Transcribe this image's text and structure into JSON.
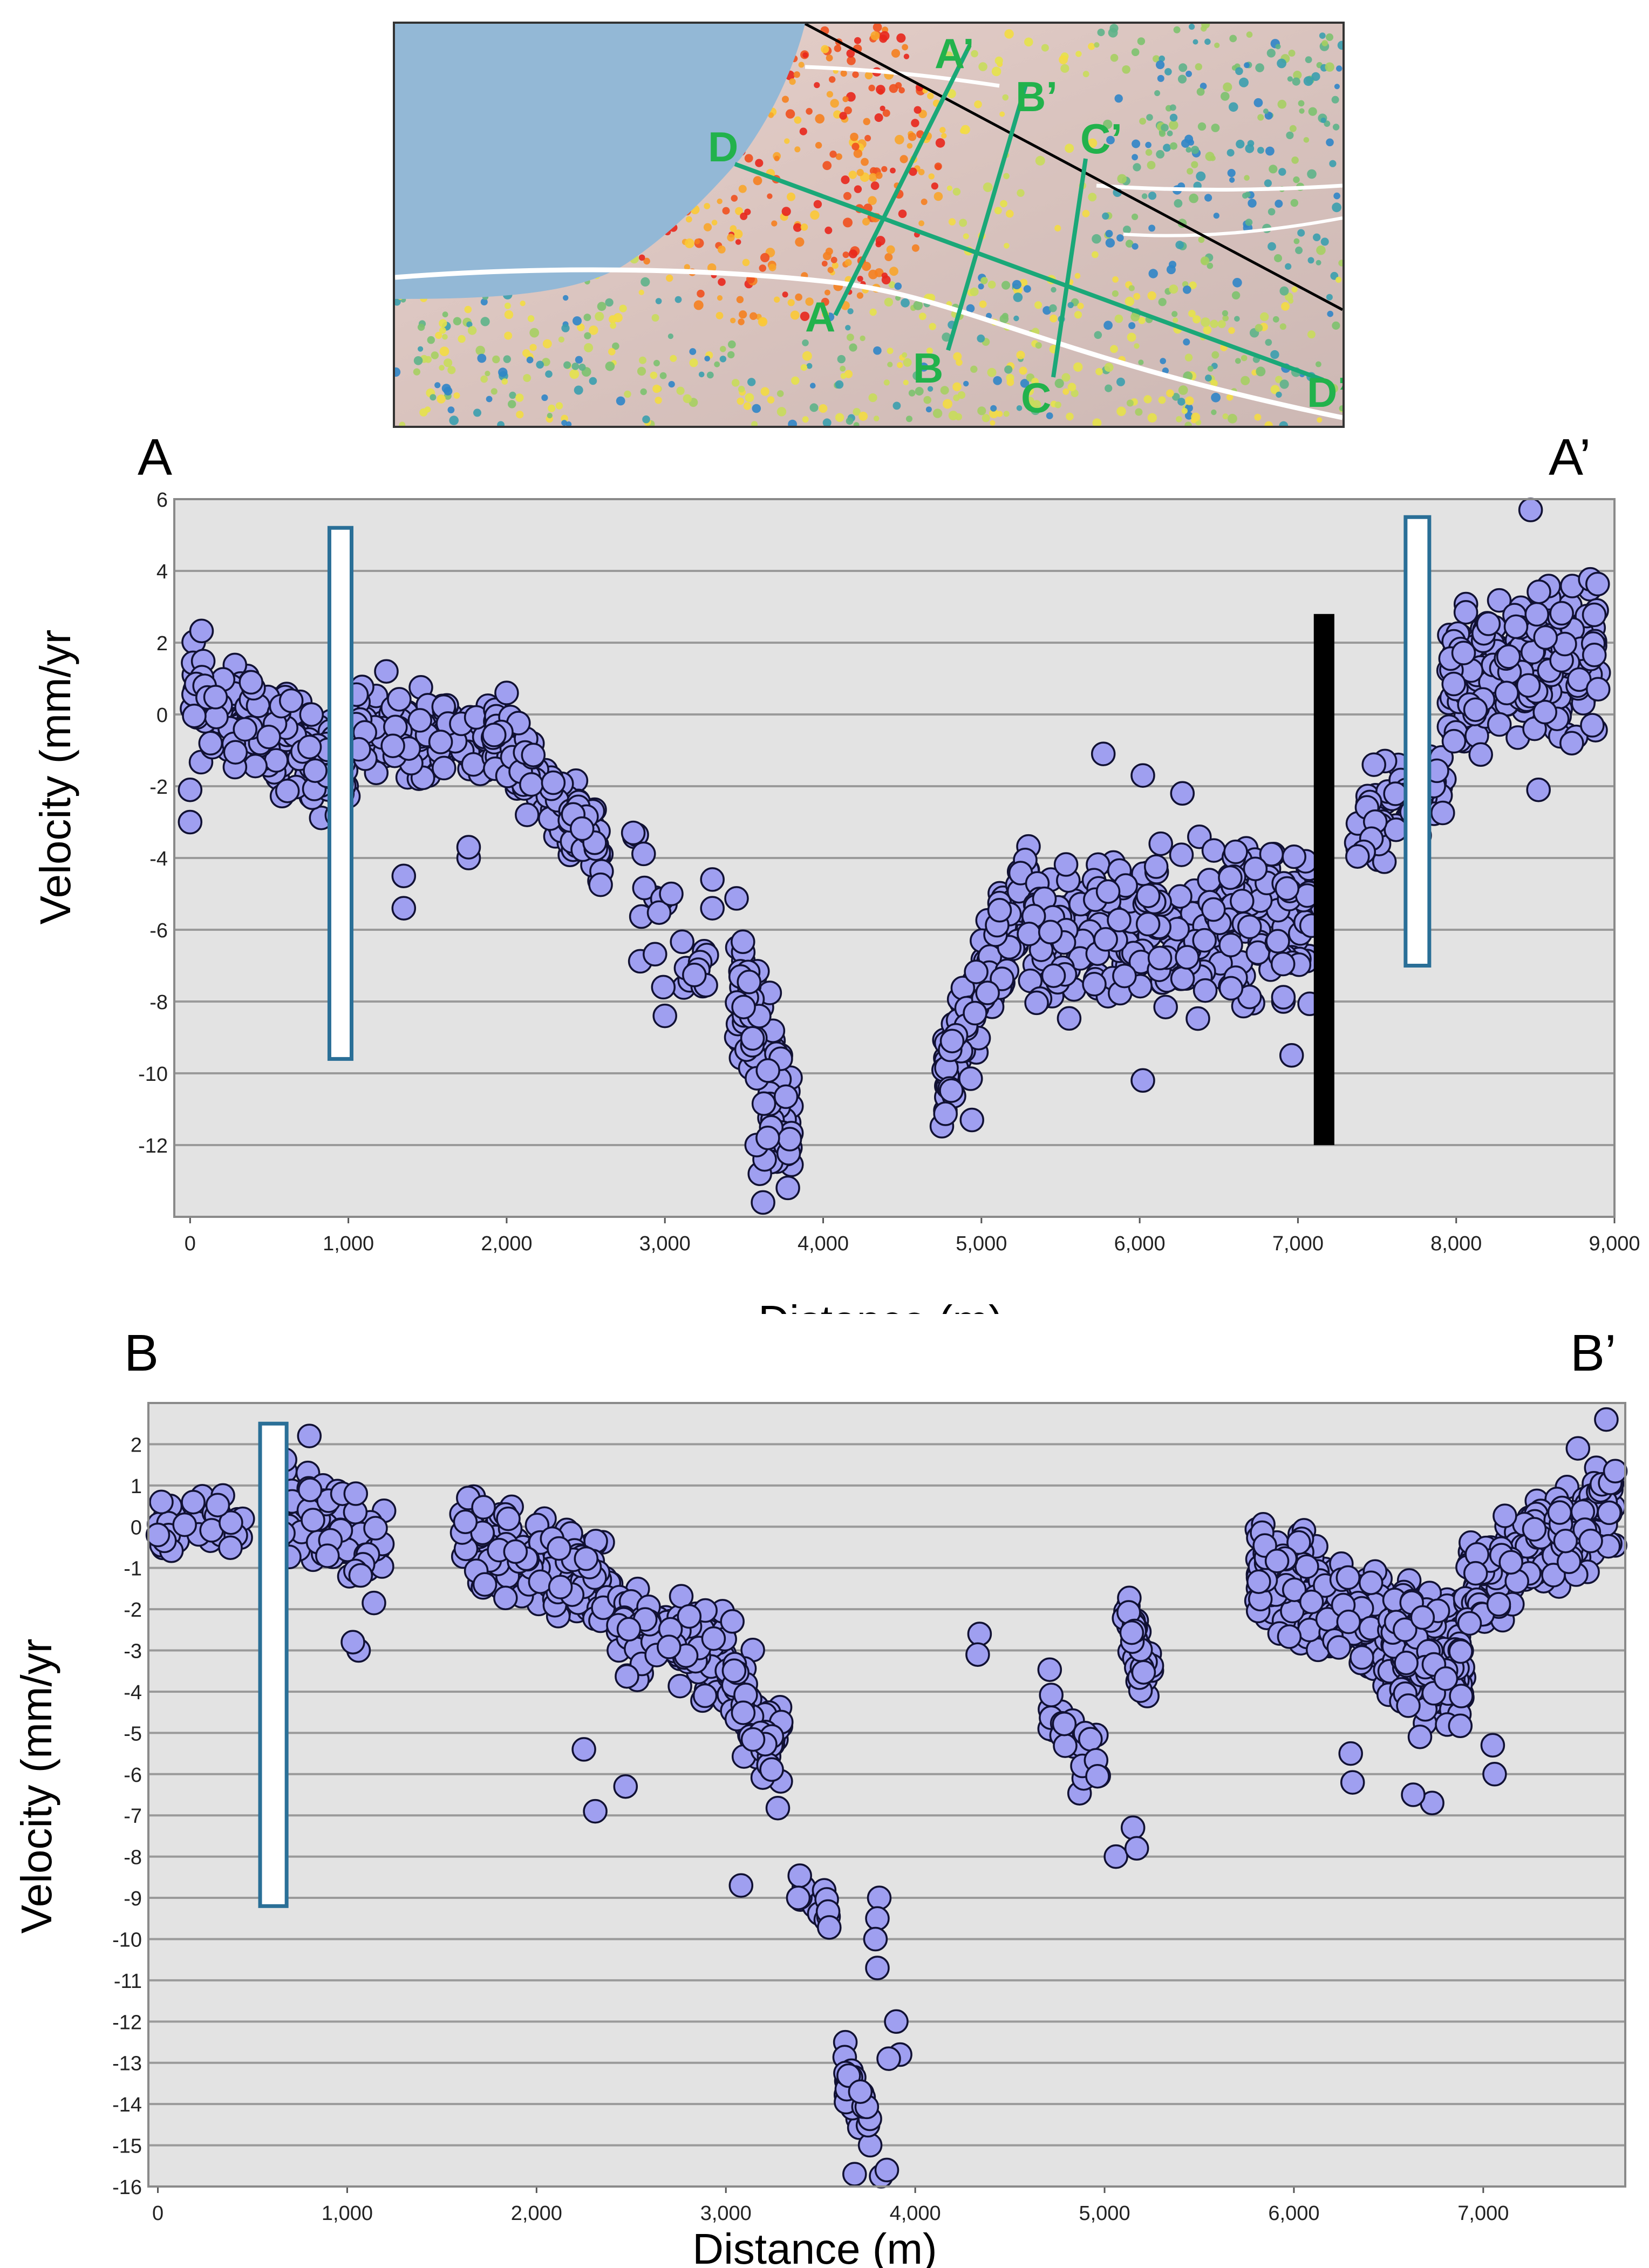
{
  "map": {
    "profile_labels": [
      "A",
      "A’",
      "B",
      "B’",
      "C",
      "C’",
      "D",
      "D’"
    ],
    "colors": {
      "water": "#93b8d6",
      "profile_line": "#1aa878",
      "label": "#22b24c",
      "fault": "#000000",
      "road": "#ffffff"
    }
  },
  "colors": {
    "point_fill": "#9f9ff0",
    "point_stroke": "#111133",
    "plot_bg": "#e3e3e3",
    "grid": "#9a9a9a",
    "box_stroke": "#2a6f97",
    "bar_fill": "#000000"
  },
  "chart_data": [
    {
      "id": "A",
      "type": "scatter",
      "title_left": "A",
      "title_right": "A’",
      "xlabel": "Distance (m)",
      "ylabel": "Velocity (mm/yr",
      "xlim": [
        -100,
        9000
      ],
      "ylim": [
        -14,
        6
      ],
      "xticks": [
        0,
        1000,
        2000,
        3000,
        4000,
        5000,
        6000,
        7000,
        8000,
        9000
      ],
      "xtick_labels": [
        "0",
        "1,000",
        "2,000",
        "3,000",
        "4,000",
        "5,000",
        "6,000",
        "7,000",
        "8,000",
        "9,000"
      ],
      "yticks": [
        -12,
        -10,
        -8,
        -6,
        -4,
        -2,
        0,
        2,
        4,
        6
      ],
      "ytick_labels": [
        "-12",
        "-10",
        "-8",
        "-6",
        "-4",
        "-2",
        "0",
        "2",
        "4",
        "6"
      ],
      "annotations": [
        {
          "kind": "open-box",
          "x0": 880,
          "x1": 1020,
          "y0": -9.6,
          "y1": 5.2
        },
        {
          "kind": "open-box",
          "x0": 7680,
          "x1": 7830,
          "y0": -7,
          "y1": 5.5
        },
        {
          "kind": "filled-bar",
          "x0": 7100,
          "x1": 7230,
          "y0": -12,
          "y1": 2.8
        }
      ],
      "clusters": [
        {
          "x": [
            0,
            1000
          ],
          "y": [
            0.6,
            -1.6
          ],
          "spread": 1.1,
          "n": 220
        },
        {
          "x": [
            1000,
            1900
          ],
          "y": [
            -0.3,
            -0.9
          ],
          "spread": 0.9,
          "n": 130
        },
        {
          "x": [
            1900,
            2600
          ],
          "y": [
            -0.5,
            -3.8
          ],
          "spread": 0.9,
          "n": 140
        },
        {
          "x": [
            2800,
            3300
          ],
          "y": [
            -4.8,
            -7.2
          ],
          "spread": 1.3,
          "n": 22
        },
        {
          "x": [
            3450,
            3800
          ],
          "y": [
            -7.5,
            -12
          ],
          "spread": 1.6,
          "n": 85
        },
        {
          "x": [
            4750,
            5300
          ],
          "y": [
            -10.5,
            -4.5
          ],
          "spread": 1.1,
          "n": 130
        },
        {
          "x": [
            5300,
            7100
          ],
          "y": [
            -6.0,
            -5.8
          ],
          "spread": 1.6,
          "n": 330
        },
        {
          "x": [
            7350,
            7950
          ],
          "y": [
            -3.4,
            -1.8
          ],
          "spread": 0.9,
          "n": 60
        },
        {
          "x": [
            7950,
            8900
          ],
          "y": [
            1.2,
            1.5
          ],
          "spread": 1.6,
          "n": 260
        }
      ],
      "points": [
        [
          3620,
          -13.6
        ],
        [
          3600,
          -12.8
        ],
        [
          3630,
          -12.4
        ],
        [
          3580,
          -12.0
        ],
        [
          3650,
          -11.8
        ],
        [
          2800,
          -3.3
        ],
        [
          1350,
          -5.4
        ],
        [
          1350,
          -4.5
        ],
        [
          1240,
          1.2
        ],
        [
          1760,
          -4.0
        ],
        [
          1760,
          -3.7
        ],
        [
          2000,
          0.6
        ],
        [
          3000,
          -8.4
        ],
        [
          3040,
          -5.0
        ],
        [
          2990,
          -7.6
        ],
        [
          3300,
          -5.4
        ],
        [
          3300,
          -4.6
        ],
        [
          5770,
          -1.1
        ],
        [
          6020,
          -1.7
        ],
        [
          6020,
          -10.2
        ],
        [
          6270,
          -2.2
        ],
        [
          6960,
          -9.5
        ],
        [
          8520,
          -2.1
        ],
        [
          8470,
          5.7
        ],
        [
          7550,
          -1.3
        ],
        [
          7480,
          -1.4
        ],
        [
          4940,
          -11.3
        ],
        [
          0,
          -3.0
        ],
        [
          0,
          -2.1
        ],
        [
          8730,
          -0.8
        ],
        [
          8860,
          -0.3
        ]
      ]
    },
    {
      "id": "B",
      "type": "scatter",
      "title_left": "B",
      "title_right": "B’",
      "xlabel": "Distance (m)",
      "ylabel": "Velocity (mm/yr",
      "xlim": [
        -50,
        7750
      ],
      "ylim": [
        -16,
        3
      ],
      "xticks": [
        0,
        1000,
        2000,
        3000,
        4000,
        5000,
        6000,
        7000
      ],
      "xtick_labels": [
        "0",
        "1,000",
        "2,000",
        "3,000",
        "4,000",
        "5,000",
        "6,000",
        "7,000"
      ],
      "yticks": [
        -16,
        -15,
        -14,
        -13,
        -12,
        -11,
        -10,
        -9,
        -8,
        -7,
        -6,
        -5,
        -4,
        -3,
        -2,
        -1,
        0,
        1,
        2
      ],
      "ytick_labels": [
        "-16",
        "-15",
        "-14",
        "-13",
        "-12",
        "-11",
        "-10",
        "-9",
        "-8",
        "-7",
        "-6",
        "-5",
        "-4",
        "-3",
        "-2",
        "-1",
        "0",
        "1",
        "2"
      ],
      "annotations": [
        {
          "kind": "open-box",
          "x0": 540,
          "x1": 680,
          "y0": -9.2,
          "y1": 2.5
        }
      ],
      "clusters": [
        {
          "x": [
            0,
            450
          ],
          "y": [
            0.0,
            0.2
          ],
          "spread": 0.6,
          "n": 45
        },
        {
          "x": [
            650,
            1200
          ],
          "y": [
            0.6,
            -0.8
          ],
          "spread": 0.9,
          "n": 110
        },
        {
          "x": [
            1600,
            2400
          ],
          "y": [
            -0.2,
            -1.6
          ],
          "spread": 0.9,
          "n": 150
        },
        {
          "x": [
            2400,
            3000
          ],
          "y": [
            -2.4,
            -3.0
          ],
          "spread": 0.9,
          "n": 110
        },
        {
          "x": [
            3000,
            3300
          ],
          "y": [
            -3.4,
            -5.8
          ],
          "spread": 1.1,
          "n": 60
        },
        {
          "x": [
            3350,
            3550
          ],
          "y": [
            -8.7,
            -9.3
          ],
          "spread": 0.4,
          "n": 14
        },
        {
          "x": [
            3620,
            3780
          ],
          "y": [
            -13.2,
            -14.8
          ],
          "spread": 0.6,
          "n": 30
        },
        {
          "x": [
            4700,
            5000
          ],
          "y": [
            -4.5,
            -6.0
          ],
          "spread": 0.7,
          "n": 35
        },
        {
          "x": [
            5100,
            5250
          ],
          "y": [
            -2.0,
            -3.8
          ],
          "spread": 0.6,
          "n": 45
        },
        {
          "x": [
            5800,
            6500
          ],
          "y": [
            -0.9,
            -2.6
          ],
          "spread": 1.0,
          "n": 200
        },
        {
          "x": [
            6500,
            6900
          ],
          "y": [
            -3.0,
            -3.2
          ],
          "spread": 1.3,
          "n": 150
        },
        {
          "x": [
            6900,
            7700
          ],
          "y": [
            -1.6,
            0.6
          ],
          "spread": 1.0,
          "n": 210
        }
      ],
      "points": [
        [
          800,
          2.2
        ],
        [
          7650,
          2.6
        ],
        [
          7500,
          1.9
        ],
        [
          2250,
          -5.4
        ],
        [
          2310,
          -6.9
        ],
        [
          2470,
          -6.3
        ],
        [
          3080,
          -8.7
        ],
        [
          3810,
          -9.0
        ],
        [
          3800,
          -10.7
        ],
        [
          3900,
          -12.0
        ],
        [
          3920,
          -12.8
        ],
        [
          3860,
          -12.9
        ],
        [
          3820,
          -15.9
        ],
        [
          3850,
          -15.6
        ],
        [
          3680,
          -15.7
        ],
        [
          3710,
          -13.7
        ],
        [
          4340,
          -2.6
        ],
        [
          4330,
          -3.1
        ],
        [
          5060,
          -8.0
        ],
        [
          5150,
          -7.3
        ],
        [
          5170,
          -7.8
        ],
        [
          6310,
          -6.2
        ],
        [
          6300,
          -5.5
        ],
        [
          6730,
          -6.7
        ],
        [
          6630,
          -6.5
        ],
        [
          7050,
          -5.3
        ],
        [
          7060,
          -6.0
        ],
        [
          0,
          -0.2
        ],
        [
          1060,
          -3.0
        ],
        [
          1030,
          -2.8
        ],
        [
          3800,
          -9.5
        ],
        [
          3790,
          -10.0
        ]
      ]
    }
  ]
}
